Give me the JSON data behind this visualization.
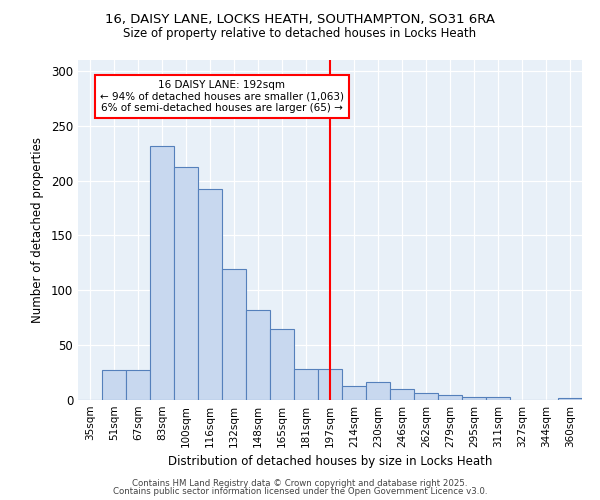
{
  "title1": "16, DAISY LANE, LOCKS HEATH, SOUTHAMPTON, SO31 6RA",
  "title2": "Size of property relative to detached houses in Locks Heath",
  "xlabel": "Distribution of detached houses by size in Locks Heath",
  "ylabel": "Number of detached properties",
  "categories": [
    "35sqm",
    "51sqm",
    "67sqm",
    "83sqm",
    "100sqm",
    "116sqm",
    "132sqm",
    "148sqm",
    "165sqm",
    "181sqm",
    "197sqm",
    "214sqm",
    "230sqm",
    "246sqm",
    "262sqm",
    "279sqm",
    "295sqm",
    "311sqm",
    "327sqm",
    "344sqm",
    "360sqm"
  ],
  "values": [
    0,
    27,
    27,
    232,
    212,
    192,
    119,
    82,
    65,
    28,
    28,
    13,
    16,
    10,
    6,
    5,
    3,
    3,
    0,
    0,
    2
  ],
  "bar_color": "#c8d8ef",
  "bar_edge_color": "#5580bb",
  "vline_x_index": 10,
  "vline_color": "red",
  "annotation_line1": "16 DAISY LANE: 192sqm",
  "annotation_line2": "← 94% of detached houses are smaller (1,063)",
  "annotation_line3": "6% of semi-detached houses are larger (65) →",
  "annotation_box_color": "red",
  "ylim": [
    0,
    310
  ],
  "yticks": [
    0,
    50,
    100,
    150,
    200,
    250,
    300
  ],
  "bg_color": "#e8f0f8",
  "fig_bg_color": "#ffffff",
  "footer1": "Contains HM Land Registry data © Crown copyright and database right 2025.",
  "footer2": "Contains public sector information licensed under the Open Government Licence v3.0."
}
